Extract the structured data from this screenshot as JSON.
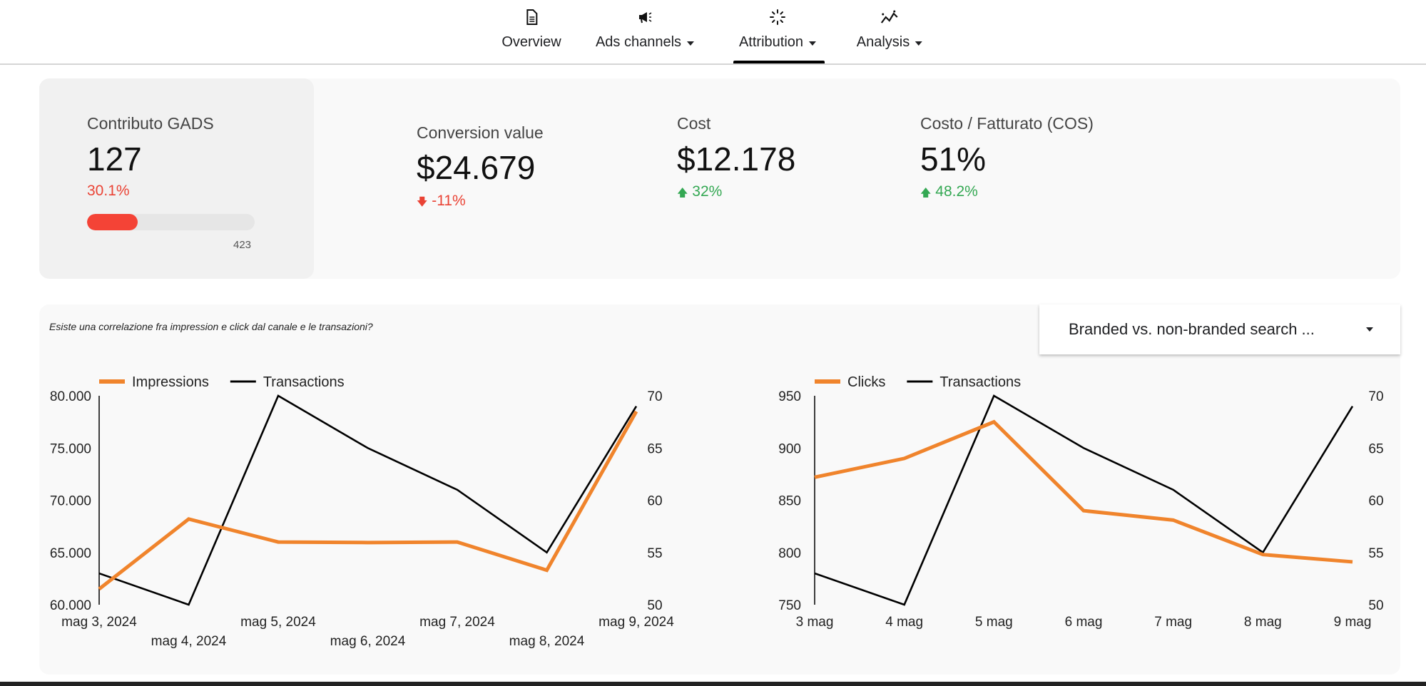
{
  "nav": {
    "items": [
      {
        "label": "Overview",
        "icon": "document-icon",
        "has_menu": false
      },
      {
        "label": "Ads channels",
        "icon": "megaphone-icon",
        "has_menu": true
      },
      {
        "label": "Attribution",
        "icon": "sparkle-icon",
        "has_menu": true,
        "active": true
      },
      {
        "label": "Analysis",
        "icon": "trend-icon",
        "has_menu": true
      }
    ]
  },
  "kpis": {
    "gads": {
      "label": "Contributo GADS",
      "value": "127",
      "percent": "30.1%",
      "progress_fraction": 0.301,
      "max": "423"
    },
    "conversion": {
      "label": "Conversion value",
      "value": "$24.679",
      "delta": "-11%",
      "direction": "down"
    },
    "cost": {
      "label": "Cost",
      "value": "$12.178",
      "delta": "32%",
      "direction": "up"
    },
    "cos": {
      "label": "Costo / Fatturato (COS)",
      "value": "51%",
      "delta": "48.2%",
      "direction": "up"
    }
  },
  "charts_section": {
    "caption": "Esiste una correlazione fra impression e click dal canale e le transazioni?",
    "dropdown_value": "Branded vs. non-branded search ..."
  },
  "colors": {
    "orange": "#f0842c",
    "black": "#000000",
    "red": "#ea4335",
    "green": "#34a853"
  },
  "chart_data": [
    {
      "type": "line",
      "categories": [
        "mag 3, 2024",
        "mag 4, 2024",
        "mag 5, 2024",
        "mag 6, 2024",
        "mag 7, 2024",
        "mag 8, 2024",
        "mag 9, 2024"
      ],
      "series": [
        {
          "name": "Impressions",
          "axis": "left",
          "color": "#f0842c",
          "values": [
            61500,
            68200,
            66000,
            65950,
            66000,
            63300,
            78500
          ]
        },
        {
          "name": "Transactions",
          "axis": "right",
          "color": "#000000",
          "values": [
            53,
            50,
            70,
            65,
            61,
            55,
            69
          ]
        }
      ],
      "left_axis": {
        "range": [
          60000,
          80000
        ],
        "ticks": [
          "60.000",
          "65.000",
          "70.000",
          "75.000",
          "80.000"
        ]
      },
      "right_axis": {
        "range": [
          50,
          70
        ],
        "ticks": [
          "50",
          "55",
          "60",
          "65",
          "70"
        ]
      },
      "legend": "top-left",
      "stagger_labels": true
    },
    {
      "type": "line",
      "categories": [
        "3 mag",
        "4 mag",
        "5 mag",
        "6 mag",
        "7 mag",
        "8 mag",
        "9 mag"
      ],
      "series": [
        {
          "name": "Clicks",
          "axis": "left",
          "color": "#f0842c",
          "values": [
            872,
            890,
            925,
            840,
            831,
            798,
            791
          ]
        },
        {
          "name": "Transactions",
          "axis": "right",
          "color": "#000000",
          "values": [
            53,
            50,
            70,
            65,
            61,
            55,
            69
          ]
        }
      ],
      "left_axis": {
        "range": [
          750,
          950
        ],
        "ticks": [
          "750",
          "800",
          "850",
          "900",
          "950"
        ]
      },
      "right_axis": {
        "range": [
          50,
          70
        ],
        "ticks": [
          "50",
          "55",
          "60",
          "65",
          "70"
        ]
      },
      "legend": "top-left",
      "stagger_labels": false
    }
  ]
}
